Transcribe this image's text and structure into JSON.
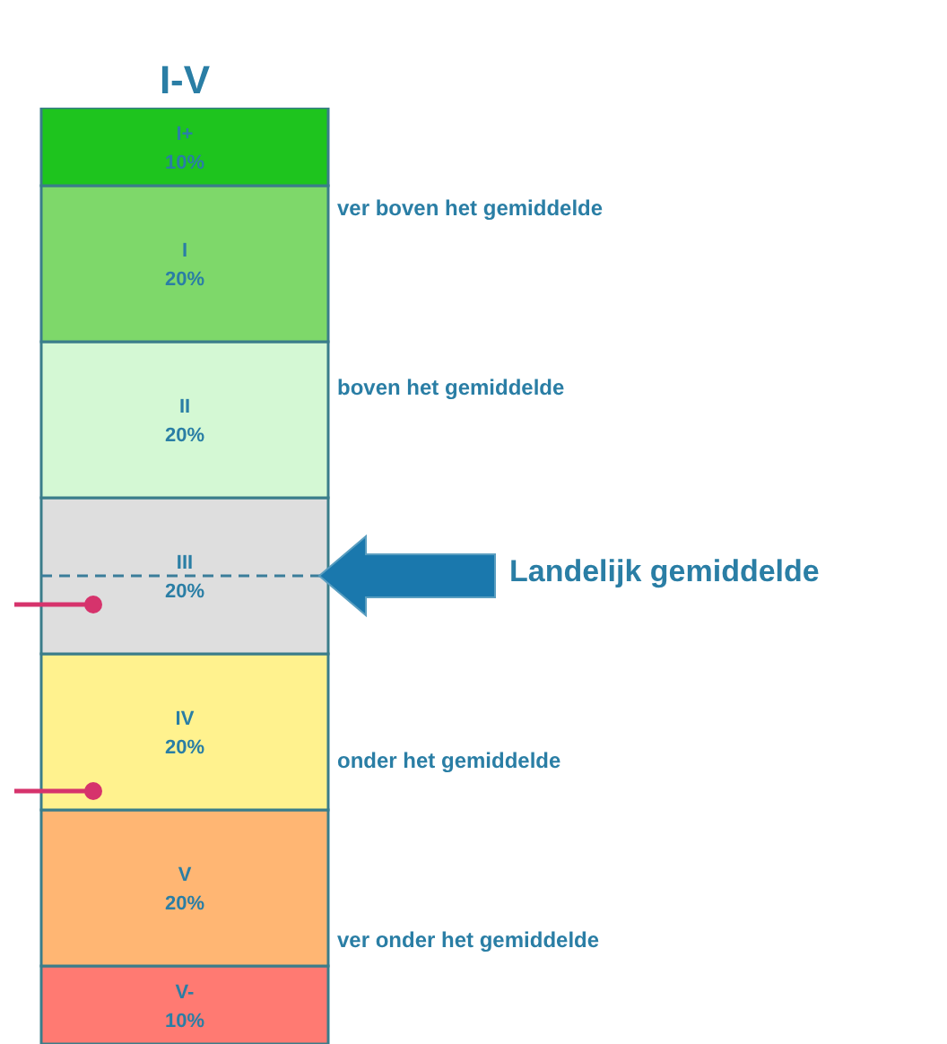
{
  "chart_data": {
    "type": "bar",
    "stacked": true,
    "categories": [
      "I-V"
    ],
    "tick_labels": "x",
    "series": [
      {
        "name": "V-",
        "color": "#ff7a72",
        "values": [
          10
        ],
        "value_labels": [
          "10%"
        ]
      },
      {
        "name": "V",
        "color": "#ffb673",
        "values": [
          20
        ],
        "value_labels": [
          "20%"
        ]
      },
      {
        "name": "IV",
        "color": "#fff28e",
        "values": [
          20
        ],
        "value_labels": [
          "20%"
        ]
      },
      {
        "name": "III",
        "color": "#dedede",
        "values": [
          20
        ],
        "value_labels": [
          "20%"
        ]
      },
      {
        "name": "II",
        "color": "#d4f8d4",
        "values": [
          20
        ],
        "value_labels": [
          "20%"
        ]
      },
      {
        "name": "I",
        "color": "#7ed86a",
        "values": [
          20
        ],
        "value_labels": [
          "20%"
        ]
      },
      {
        "name": "I+",
        "color": "#1ec41e",
        "values": [
          10
        ],
        "value_labels": [
          "10%"
        ]
      }
    ],
    "ref_lines": [
      {
        "axis": "y",
        "value": 60,
        "label": "Landelijk gemiddelde",
        "line_style": "dashed",
        "color": "#3a7d9a"
      }
    ],
    "annotations": [
      "ver boven het gemiddelde",
      "boven het gemiddelde",
      "onder het gemiddelde",
      "ver onder het gemiddelde"
    ],
    "legend": false,
    "grid": false
  }
}
